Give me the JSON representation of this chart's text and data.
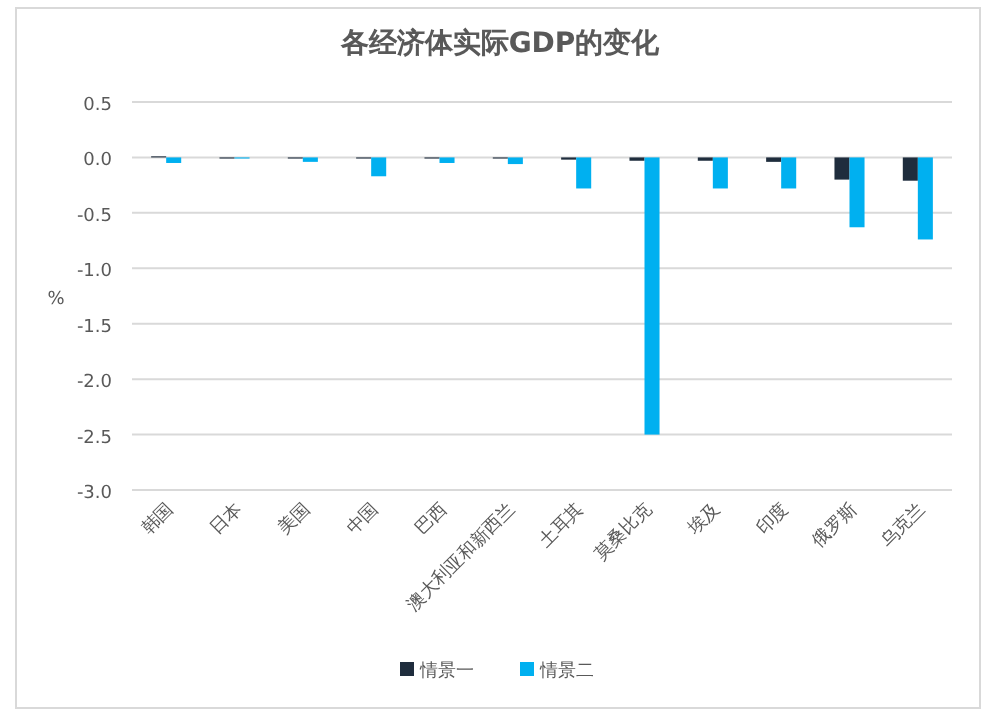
{
  "chart_data": {
    "type": "bar",
    "title": "各经济体实际GDP的变化",
    "ylabel": "%",
    "categories": [
      "韩国",
      "日本",
      "美国",
      "中国",
      "巴西",
      "澳大利亚和新西兰",
      "土耳其",
      "莫桑比克",
      "埃及",
      "印度",
      "俄罗斯",
      "乌克兰"
    ],
    "series": [
      {
        "name": "情景一",
        "color": "#1f2d3d",
        "values": [
          0.01,
          -0.01,
          -0.01,
          -0.01,
          -0.01,
          -0.01,
          -0.02,
          -0.03,
          -0.03,
          -0.04,
          -0.2,
          -0.21
        ]
      },
      {
        "name": "情景二",
        "color": "#00b0f0",
        "values": [
          -0.05,
          -0.01,
          -0.04,
          -0.17,
          -0.05,
          -0.06,
          -0.28,
          -2.5,
          -0.28,
          -0.28,
          -0.63,
          -0.74
        ]
      }
    ],
    "ylim": [
      -3.0,
      0.5
    ],
    "yticks": [
      {
        "value": 0.5,
        "label": "0.5"
      },
      {
        "value": 0,
        "label": "0.0"
      },
      {
        "value": -0.5,
        "label": "-0.5"
      },
      {
        "value": -1,
        "label": "-1.0"
      },
      {
        "value": -1.5,
        "label": "-1.5"
      },
      {
        "value": -2,
        "label": "-2.0"
      },
      {
        "value": -2.5,
        "label": "-2.5"
      },
      {
        "value": -3,
        "label": "-3.0"
      }
    ],
    "grid": "y",
    "legend": "bottom"
  }
}
